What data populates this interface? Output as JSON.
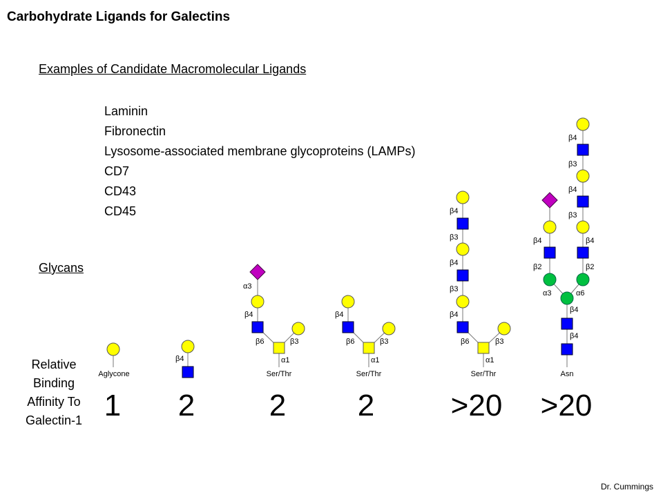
{
  "title": "Carbohydrate Ligands for Galectins",
  "macro_heading": "Examples of Candidate Macromolecular Ligands",
  "ligands": [
    "Laminin",
    "Fibronectin",
    "Lysosome-associated membrane glycoproteins (LAMPs)",
    "CD7",
    "CD43",
    "CD45"
  ],
  "glycans_heading": "Glycans",
  "affinity_label": [
    "Relative",
    "Binding",
    "Affinity To",
    "Galectin-1"
  ],
  "affinities": [
    "1",
    "2",
    "2",
    "2",
    ">20",
    ">20"
  ],
  "anchors": [
    "Aglycone",
    "Ser/Thr",
    "Ser/Thr",
    "Ser/Thr",
    "Asn"
  ],
  "linkages": {
    "b4": "β4",
    "b3": "β3",
    "b6": "β6",
    "b2": "β2",
    "a1": "α1",
    "a3": "α3",
    "a6": "α6"
  },
  "colors": {
    "galactose": "#ffff00",
    "glcnac": "#0000ff",
    "galnac": "#ffff00",
    "mannose": "#00c040",
    "sialic_acid": "#c000c0"
  },
  "credit": "Dr. Cummings"
}
